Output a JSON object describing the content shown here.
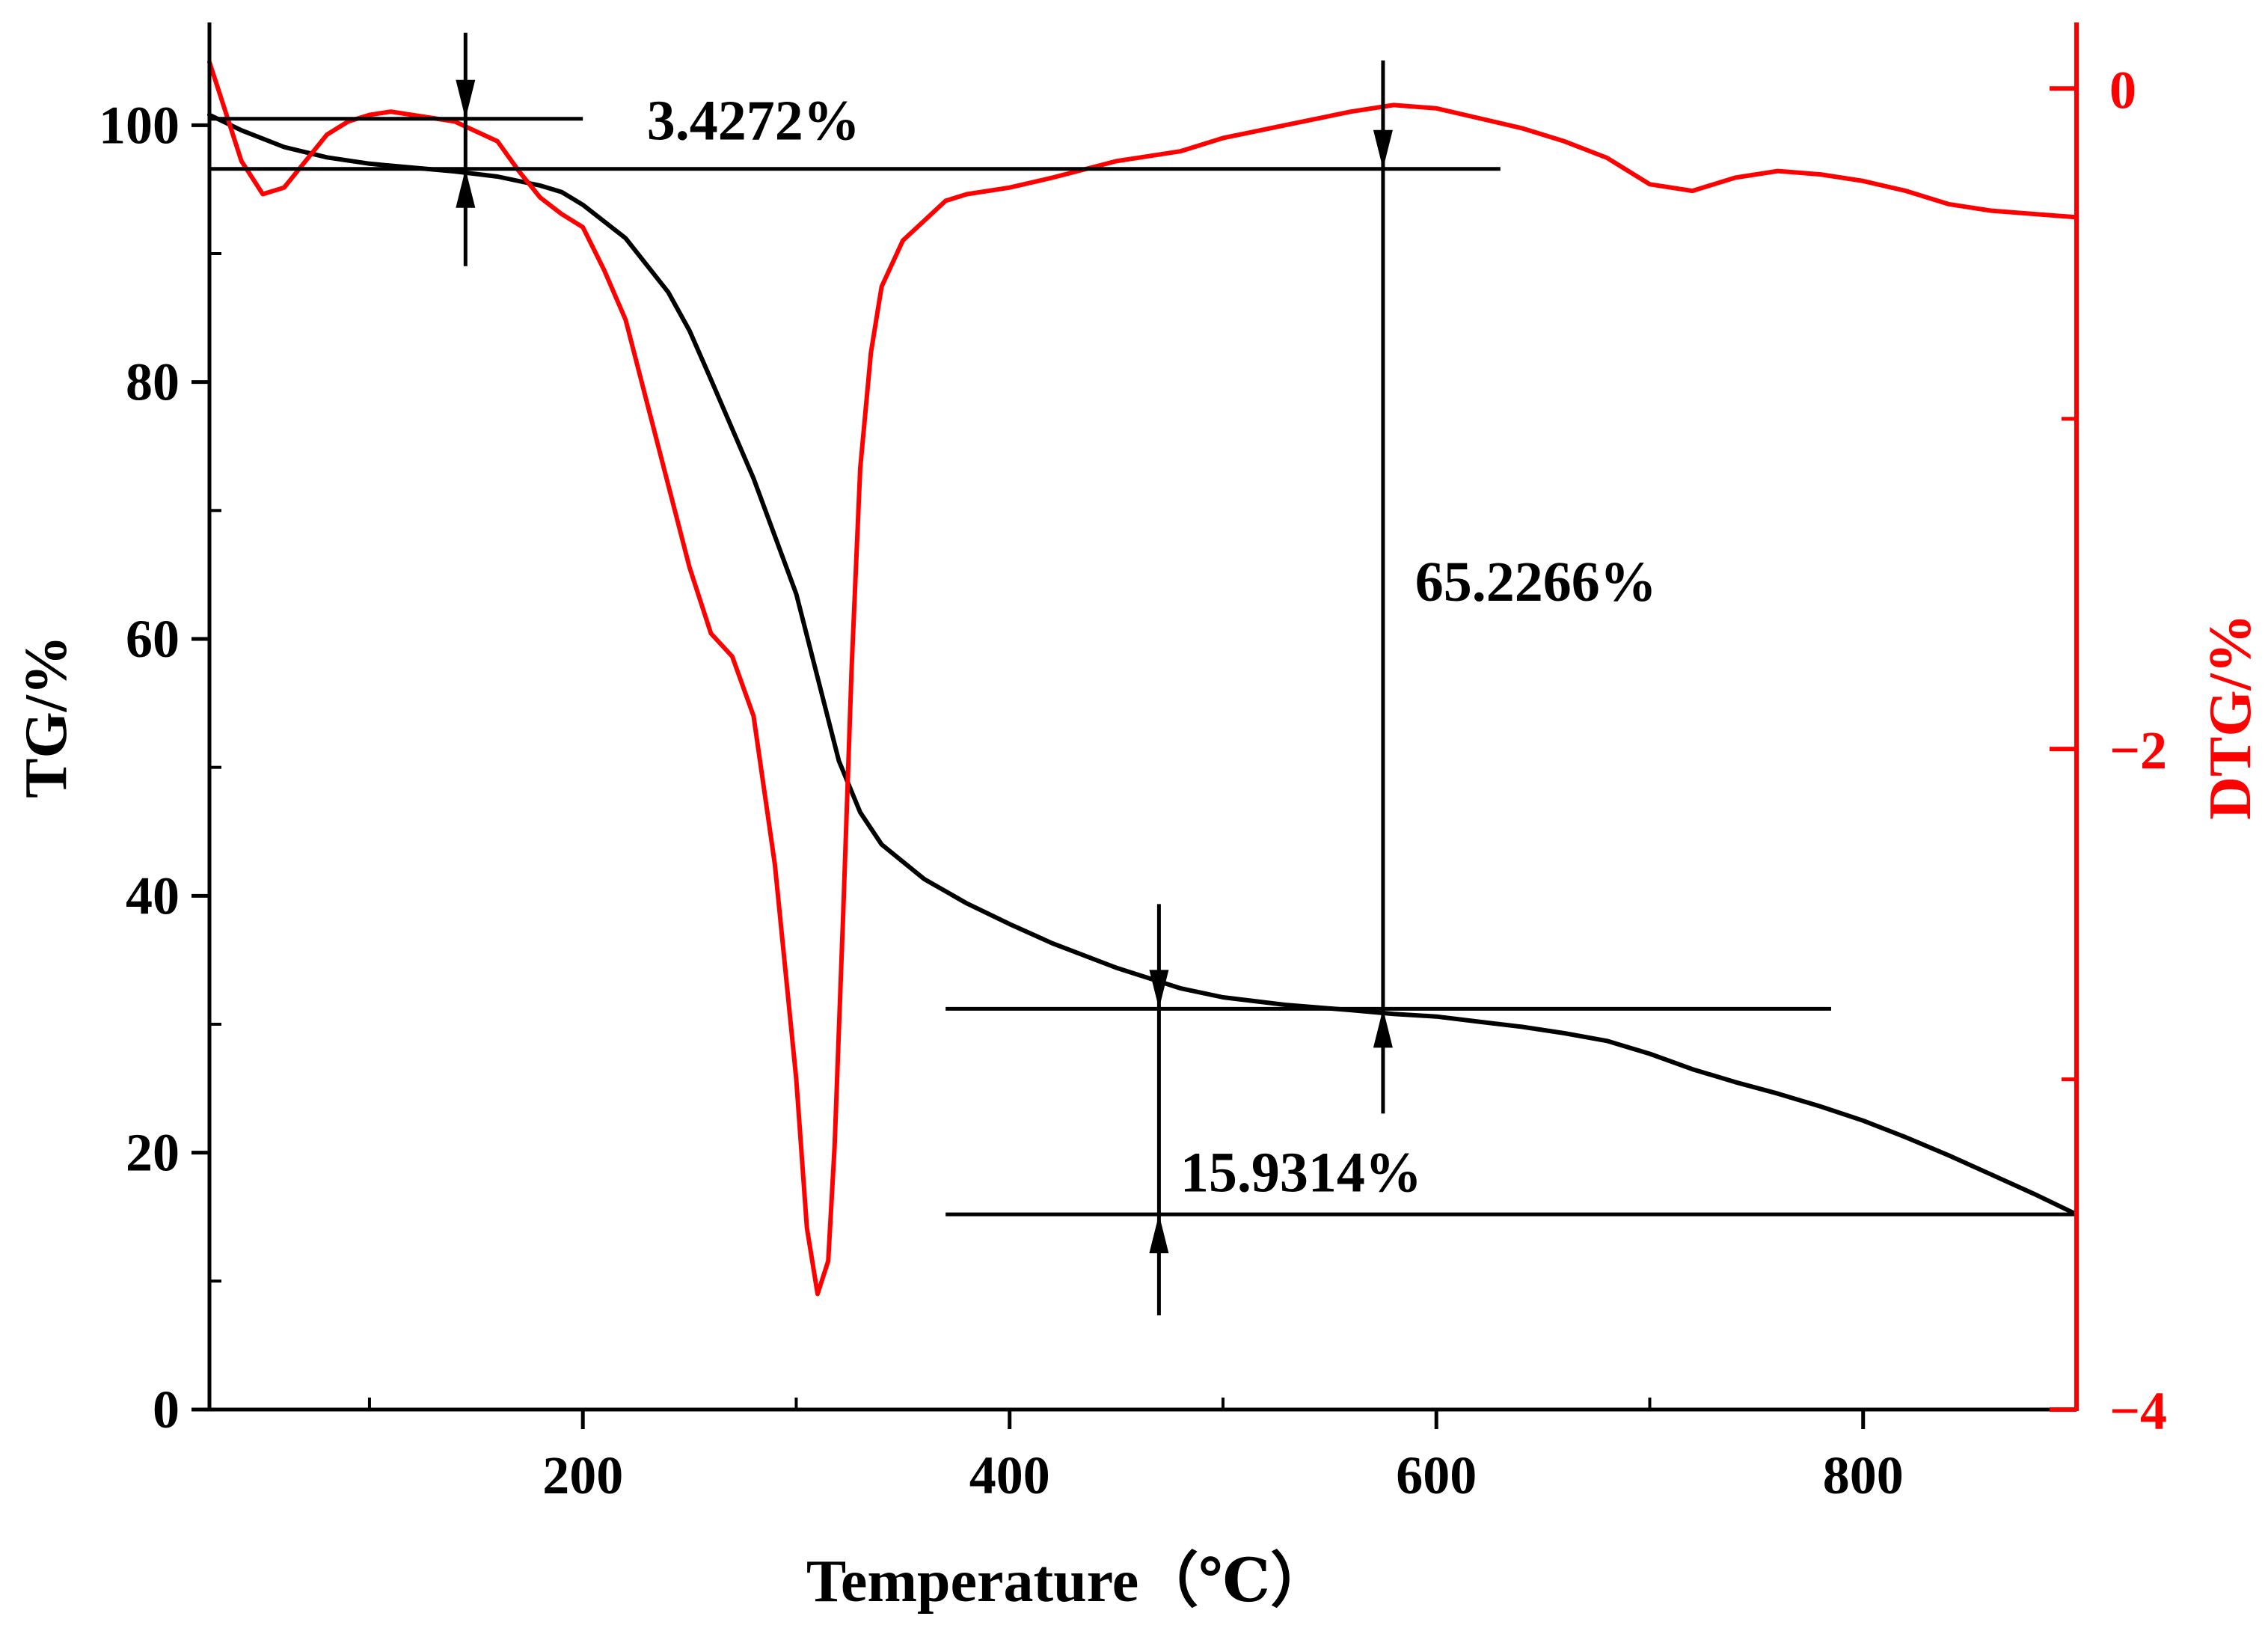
{
  "chart_data": {
    "type": "line",
    "xlabel": "Temperature（℃）",
    "ylabel_left": "TG/%",
    "ylabel_right": "DTG/%",
    "colors": {
      "tg": "#000000",
      "dtg": "#ff0000",
      "axis_left": "#000000",
      "axis_right": "#ff0000"
    },
    "xlim": [
      25,
      900
    ],
    "ylim_left": [
      0,
      108
    ],
    "ylim_right": [
      -4,
      0.2
    ],
    "x_ticks": [
      {
        "value": 200,
        "label": "200"
      },
      {
        "value": 400,
        "label": "400"
      },
      {
        "value": 600,
        "label": "600"
      },
      {
        "value": 800,
        "label": "800"
      }
    ],
    "x_minor_ticks": [
      100,
      300,
      500,
      700
    ],
    "y_left_ticks": [
      {
        "value": 0,
        "label": "0"
      },
      {
        "value": 20,
        "label": "20"
      },
      {
        "value": 40,
        "label": "40"
      },
      {
        "value": 60,
        "label": "60"
      },
      {
        "value": 80,
        "label": "80"
      },
      {
        "value": 100,
        "label": "100"
      }
    ],
    "y_left_minor_ticks": [
      10,
      30,
      50,
      70,
      90
    ],
    "y_right_ticks": [
      {
        "value": 0,
        "label": "0"
      },
      {
        "value": -2,
        "label": "−2"
      },
      {
        "value": -4,
        "label": "−4"
      }
    ],
    "y_right_minor_ticks": [
      -1,
      -3
    ],
    "series": [
      {
        "name": "TG",
        "axis": "left",
        "x": [
          25,
          40,
          60,
          80,
          100,
          120,
          140,
          160,
          180,
          190,
          200,
          220,
          240,
          250,
          260,
          280,
          300,
          310,
          320,
          330,
          340,
          360,
          380,
          400,
          420,
          450,
          480,
          500,
          530,
          560,
          580,
          600,
          620,
          640,
          660,
          680,
          700,
          720,
          740,
          760,
          780,
          800,
          820,
          840,
          860,
          880,
          900
        ],
        "y": [
          100.8,
          99.6,
          98.3,
          97.5,
          97.0,
          96.7,
          96.4,
          96.0,
          95.3,
          94.8,
          93.8,
          91.2,
          87.0,
          84.0,
          80.2,
          72.5,
          63.5,
          57.0,
          50.5,
          46.5,
          44.0,
          41.3,
          39.4,
          37.8,
          36.3,
          34.4,
          32.8,
          32.1,
          31.5,
          31.1,
          30.8,
          30.6,
          30.2,
          29.8,
          29.3,
          28.7,
          27.7,
          26.5,
          25.5,
          24.6,
          23.6,
          22.5,
          21.2,
          19.8,
          18.3,
          16.8,
          15.2
        ]
      },
      {
        "name": "DTG",
        "axis": "right",
        "x": [
          25,
          30,
          40,
          50,
          60,
          70,
          80,
          90,
          100,
          110,
          120,
          140,
          160,
          170,
          180,
          190,
          200,
          210,
          220,
          230,
          240,
          250,
          260,
          270,
          280,
          290,
          300,
          305,
          310,
          315,
          318,
          322,
          326,
          330,
          335,
          340,
          350,
          360,
          370,
          380,
          400,
          420,
          450,
          480,
          500,
          530,
          560,
          580,
          600,
          620,
          640,
          660,
          680,
          700,
          720,
          740,
          760,
          780,
          800,
          820,
          840,
          860,
          880,
          900
        ],
        "y": [
          0.08,
          -0.02,
          -0.22,
          -0.32,
          -0.3,
          -0.22,
          -0.14,
          -0.1,
          -0.08,
          -0.07,
          -0.08,
          -0.1,
          -0.16,
          -0.25,
          -0.33,
          -0.38,
          -0.42,
          -0.55,
          -0.7,
          -0.95,
          -1.2,
          -1.45,
          -1.65,
          -1.72,
          -1.9,
          -2.35,
          -3.0,
          -3.45,
          -3.65,
          -3.55,
          -3.2,
          -2.5,
          -1.75,
          -1.15,
          -0.8,
          -0.6,
          -0.46,
          -0.4,
          -0.34,
          -0.32,
          -0.3,
          -0.27,
          -0.22,
          -0.19,
          -0.15,
          -0.11,
          -0.07,
          -0.05,
          -0.06,
          -0.09,
          -0.12,
          -0.16,
          -0.21,
          -0.29,
          -0.31,
          -0.27,
          -0.25,
          -0.26,
          -0.28,
          -0.31,
          -0.35,
          -0.37,
          -0.38,
          -0.39
        ]
      }
    ],
    "annotations": [
      {
        "label": "3.4272%",
        "x": 145,
        "from": 100.5,
        "to": 96.6,
        "line_start": 25,
        "line_end": 200,
        "line2_start": 25,
        "line2_end": 630,
        "text_x": 230,
        "text_y": 100.4
      },
      {
        "label": "65.2266%",
        "x": 575,
        "from": 96.6,
        "to": 31.2,
        "line_start": 370,
        "line_end": 785,
        "text_x": 590,
        "text_y": 64.5
      },
      {
        "label": "15.9314%",
        "x": 470,
        "from": 31.2,
        "to": 15.2,
        "line_start": 370,
        "line_end": 900,
        "text_x": 480,
        "text_y": 18.5
      }
    ]
  }
}
